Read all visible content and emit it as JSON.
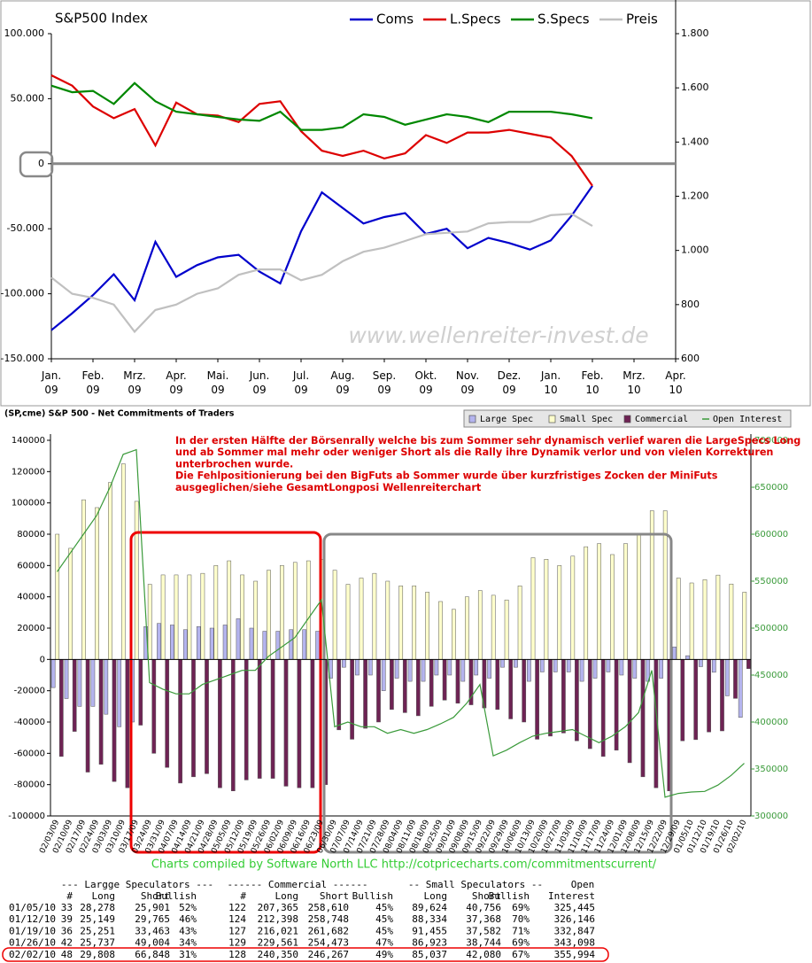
{
  "chart_data": [
    {
      "type": "line",
      "title": "S&P500 Index",
      "watermark": "www.wellenreiter-invest.de",
      "x": [
        0,
        0.5,
        1,
        1.5,
        2,
        2.5,
        3,
        3.5,
        4,
        4.5,
        5,
        5.5,
        6,
        6.5,
        7,
        7.5,
        8,
        8.5,
        9,
        9.5,
        10,
        10.5,
        11,
        11.5,
        12,
        12.5,
        13
      ],
      "xlim": [
        0,
        15
      ],
      "xticks": [
        {
          "value": 0,
          "label": "Jan. 09"
        },
        {
          "value": 1,
          "label": "Feb. 09"
        },
        {
          "value": 2,
          "label": "Mrz. 09"
        },
        {
          "value": 3,
          "label": "Apr. 09"
        },
        {
          "value": 4,
          "label": "Mai. 09"
        },
        {
          "value": 5,
          "label": "Jun. 09"
        },
        {
          "value": 6,
          "label": "Jul. 09"
        },
        {
          "value": 7,
          "label": "Aug. 09"
        },
        {
          "value": 8,
          "label": "Sep. 09"
        },
        {
          "value": 9,
          "label": "Okt. 09"
        },
        {
          "value": 10,
          "label": "Nov. 09"
        },
        {
          "value": 11,
          "label": "Dez. 09"
        },
        {
          "value": 12,
          "label": "Jan. 10"
        },
        {
          "value": 13,
          "label": "Feb. 10"
        },
        {
          "value": 14,
          "label": "Mrz. 10"
        },
        {
          "value": 15,
          "label": "Apr. 10"
        }
      ],
      "ylim": [
        -150000,
        100000
      ],
      "yticks": [
        {
          "value": 100000,
          "label": "100.000"
        },
        {
          "value": 50000,
          "label": "50.000"
        },
        0,
        {
          "value": -50000,
          "label": "-50.000"
        },
        {
          "value": -100000,
          "label": "-100.000"
        },
        {
          "value": -150000,
          "label": "-150.000"
        }
      ],
      "y2lim": [
        600,
        1800
      ],
      "y2ticks": [
        {
          "value": 1800,
          "label": "1.800"
        },
        {
          "value": 1600,
          "label": "1.600"
        },
        {
          "value": 1400,
          "label": "1.400"
        },
        {
          "value": 1200,
          "label": "1.200"
        },
        {
          "value": 1000,
          "label": "1.000"
        },
        800,
        600
      ],
      "series": [
        {
          "name": "Coms",
          "color": "#0000cc",
          "values": [
            -128000,
            -115000,
            -101000,
            -85000,
            -105000,
            -60000,
            -87000,
            -78000,
            -72000,
            -70000,
            -83000,
            -92000,
            -52000,
            -22000,
            -34000,
            -46000,
            -41000,
            -38000,
            -54000,
            -50000,
            -65000,
            -57000,
            -61000,
            -66000,
            -59000,
            -40000,
            -17000
          ]
        },
        {
          "name": "L.Specs",
          "color": "#dd0000",
          "values": [
            68000,
            60000,
            44000,
            35000,
            42000,
            14000,
            47000,
            38000,
            37000,
            32000,
            46000,
            48000,
            25000,
            10000,
            6000,
            10000,
            4000,
            8000,
            22000,
            16000,
            24000,
            24000,
            26000,
            23000,
            20000,
            6000,
            -17000
          ]
        },
        {
          "name": "S.Specs",
          "color": "#008800",
          "values": [
            60000,
            55000,
            56000,
            46000,
            62000,
            48000,
            40000,
            38000,
            36000,
            34000,
            33000,
            40000,
            26000,
            26000,
            28000,
            38000,
            36000,
            30000,
            34000,
            38000,
            36000,
            32000,
            40000,
            40000,
            40000,
            38000,
            35000
          ]
        },
        {
          "name": "Preis",
          "color": "#c0c0c0",
          "axis": "y2",
          "values": [
            900,
            840,
            825,
            800,
            700,
            780,
            800,
            840,
            860,
            910,
            930,
            930,
            890,
            910,
            960,
            995,
            1010,
            1035,
            1060,
            1065,
            1070,
            1100,
            1105,
            1105,
            1130,
            1135,
            1090
          ]
        }
      ]
    },
    {
      "type": "bar",
      "title": "(SP,cme) S&P 500 - Net Commitments of Traders",
      "annotation": [
        "In der ersten Hälfte der Börsenrally welche bis zum Sommer sehr dynamisch verlief waren die LargeSpecs Long",
        "und ab Sommer mal mehr oder weniger Short als die Rally ihre Dynamik verlor und von vielen Korrekturen",
        "unterbrochen wurde.",
        "Die Fehlpositionierung bei den BigFuts ab Sommer wurde über kurzfristiges Zocken der MiniFuts",
        "ausgeglichen/siehe GesamtLongposi Wellenreiterchart"
      ],
      "categories": [
        "02/03/09",
        "02/10/09",
        "02/17/09",
        "02/24/09",
        "03/03/09",
        "03/10/09",
        "03/17/09",
        "03/24/09",
        "03/31/09",
        "04/07/09",
        "04/14/09",
        "04/21/09",
        "04/28/09",
        "05/05/09",
        "05/12/09",
        "05/19/09",
        "05/26/09",
        "06/02/09",
        "06/09/09",
        "06/16/09",
        "06/23/09",
        "06/30/09",
        "07/07/09",
        "07/14/09",
        "07/21/09",
        "07/28/09",
        "08/04/09",
        "08/11/09",
        "08/18/09",
        "08/25/09",
        "09/01/09",
        "09/08/09",
        "09/15/09",
        "09/22/09",
        "09/29/09",
        "10/06/09",
        "10/13/09",
        "10/20/09",
        "10/27/09",
        "11/03/09",
        "11/10/09",
        "11/17/09",
        "11/24/09",
        "12/01/09",
        "12/08/09",
        "12/15/09",
        "12/22/09",
        "12/29/09",
        "01/05/10",
        "01/12/10",
        "01/19/10",
        "01/26/10",
        "02/02/10"
      ],
      "ylim": [
        -100000,
        140000
      ],
      "yticks": [
        140000,
        120000,
        100000,
        80000,
        60000,
        40000,
        20000,
        0,
        -20000,
        -40000,
        -60000,
        -80000,
        -100000
      ],
      "y2lim": [
        300000,
        700000
      ],
      "y2ticks": [
        700000,
        650000,
        600000,
        550000,
        500000,
        450000,
        400000,
        350000,
        300000
      ],
      "series": [
        {
          "name": "Large Spec",
          "color": "#b4b4ee",
          "values": [
            -18000,
            -25000,
            -30000,
            -30000,
            -35000,
            -43000,
            -40000,
            21000,
            23000,
            22000,
            19000,
            21000,
            20000,
            22000,
            26000,
            20000,
            18000,
            18000,
            19000,
            19000,
            18000,
            -12000,
            -5000,
            -10000,
            -10000,
            -20000,
            -12000,
            -14000,
            -14000,
            -10000,
            -10000,
            -14000,
            -10000,
            -12000,
            -5000,
            -5000,
            -14000,
            -8000,
            -8000,
            -8000,
            -14000,
            -12000,
            -8000,
            -10000,
            -12000,
            -14000,
            -12000,
            8000,
            2377,
            -4616,
            -8212,
            -23267,
            -37040
          ]
        },
        {
          "name": "Small Spec",
          "color": "#ffffcc",
          "values": [
            80000,
            71000,
            102000,
            97000,
            113000,
            125000,
            101000,
            48000,
            54000,
            54000,
            54000,
            55000,
            60000,
            63000,
            54000,
            50000,
            57000,
            60000,
            62000,
            63000,
            64000,
            57000,
            48000,
            52000,
            55000,
            50000,
            47000,
            47000,
            43000,
            37000,
            32000,
            40000,
            44000,
            41000,
            38000,
            47000,
            65000,
            64000,
            60000,
            66000,
            72000,
            74000,
            67000,
            74000,
            80000,
            95000,
            95000,
            52000,
            48868,
            50966,
            53873,
            48179,
            42957
          ]
        },
        {
          "name": "Commercial",
          "color": "#6e2354",
          "values": [
            -62000,
            -46000,
            -72000,
            -67000,
            -78000,
            -82000,
            -42000,
            -60000,
            -69000,
            -79000,
            -75000,
            -73000,
            -82000,
            -84000,
            -77000,
            -76000,
            -76000,
            -81000,
            -82000,
            -82000,
            -80000,
            -45000,
            -51000,
            -44000,
            -40000,
            -32000,
            -34000,
            -36000,
            -30000,
            -26000,
            -28000,
            -29000,
            -31000,
            -32000,
            -38000,
            -40000,
            -51000,
            -49000,
            -47000,
            -52000,
            -57000,
            -62000,
            -58000,
            -66000,
            -75000,
            -82000,
            -84000,
            -52000,
            -51245,
            -46350,
            -45661,
            -24912,
            -5917
          ]
        },
        {
          "name": "Open Interest",
          "type": "line",
          "axis": "y2",
          "color": "#3a9a3a",
          "values": [
            560000,
            580000,
            600000,
            620000,
            650000,
            685000,
            690000,
            442000,
            435000,
            430000,
            430000,
            440000,
            445000,
            450000,
            455000,
            455000,
            470000,
            480000,
            490000,
            510000,
            530000,
            395000,
            400000,
            395000,
            395000,
            388000,
            392000,
            388000,
            392000,
            398000,
            405000,
            420000,
            440000,
            364000,
            370000,
            378000,
            385000,
            388000,
            390000,
            392000,
            385000,
            378000,
            385000,
            395000,
            410000,
            455000,
            320000,
            324000,
            325445,
            326146,
            332847,
            343098,
            355994
          ]
        }
      ]
    }
  ],
  "footer": "Charts compiled by  Software North LLC  http://cotpricecharts.com/commitmentscurrent/",
  "table": {
    "group_headers": [
      "--- Largge Speculators ---",
      "------ Commercial ------",
      "-- Small Speculators --",
      "Open"
    ],
    "columns": [
      "#",
      "Long",
      "Short",
      "Bullish",
      "#",
      "Long",
      "Short",
      "Bullish",
      "Long",
      "Short",
      "Bullish",
      "Interest"
    ],
    "rows": [
      [
        "01/05/10",
        "33",
        "28,278",
        "25,901",
        "52%",
        "122",
        "207,365",
        "258,610",
        "45%",
        "89,624",
        "40,756",
        "69%",
        "325,445"
      ],
      [
        "01/12/10",
        "39",
        "25,149",
        "29,765",
        "46%",
        "124",
        "212,398",
        "258,748",
        "45%",
        "88,334",
        "37,368",
        "70%",
        "326,146"
      ],
      [
        "01/19/10",
        "36",
        "25,251",
        "33,463",
        "43%",
        "127",
        "216,021",
        "261,682",
        "45%",
        "91,455",
        "37,582",
        "71%",
        "332,847"
      ],
      [
        "01/26/10",
        "42",
        "25,737",
        "49,004",
        "34%",
        "129",
        "229,561",
        "254,473",
        "47%",
        "86,923",
        "38,744",
        "69%",
        "343,098"
      ],
      [
        "02/02/10",
        "48",
        "29,808",
        "66,848",
        "31%",
        "128",
        "240,350",
        "246,267",
        "49%",
        "85,037",
        "42,080",
        "67%",
        "355,994"
      ]
    ]
  }
}
